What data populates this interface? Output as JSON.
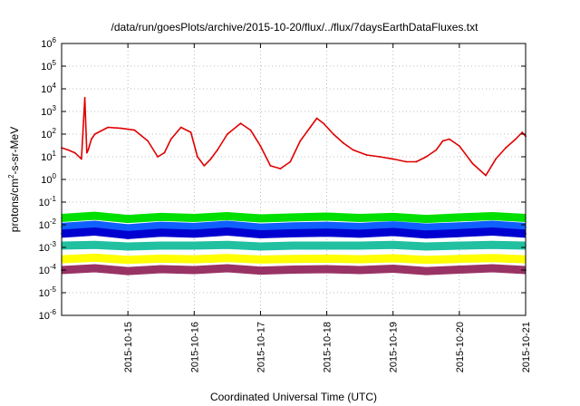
{
  "chart_data": {
    "type": "line",
    "title": "/data/run/goesPlots/archive/2015-10-20/flux/../flux/7daysEarthDataFluxes.txt",
    "xlabel": "Coordinated Universal Time (UTC)",
    "ylabel_main": "protons/cm",
    "ylabel_sup": "2",
    "ylabel_tail": "-s-sr-MeV",
    "x_range": [
      "2015-10-14",
      "2015-10-21"
    ],
    "x_ticks": [
      "2015-10-15",
      "2015-10-16",
      "2015-10-17",
      "2015-10-18",
      "2015-10-19",
      "2015-10-20",
      "2015-10-21"
    ],
    "y_scale": "log",
    "y_ticks": [
      {
        "base": "10",
        "exp": "6",
        "value": 1000000.0
      },
      {
        "base": "10",
        "exp": "5",
        "value": 100000.0
      },
      {
        "base": "10",
        "exp": "4",
        "value": 10000.0
      },
      {
        "base": "10",
        "exp": "3",
        "value": 1000.0
      },
      {
        "base": "10",
        "exp": "2",
        "value": 100.0
      },
      {
        "base": "10",
        "exp": "1",
        "value": 10.0
      },
      {
        "base": "10",
        "exp": "0",
        "value": 1.0
      },
      {
        "base": "10",
        "exp": "-1",
        "value": 0.1
      },
      {
        "base": "10",
        "exp": "-2",
        "value": 0.01
      },
      {
        "base": "10",
        "exp": "-3",
        "value": 0.001
      },
      {
        "base": "10",
        "exp": "-4",
        "value": 0.0001
      },
      {
        "base": "10",
        "exp": "-5",
        "value": 1e-05
      },
      {
        "base": "10",
        "exp": "-6",
        "value": 1e-06
      }
    ],
    "ylim": [
      1e-06,
      1000000.0
    ],
    "grid": true,
    "series": [
      {
        "color": "#e00000",
        "x": [
          0.0,
          0.1,
          0.2,
          0.3,
          0.35,
          0.38,
          0.4,
          0.45,
          0.5,
          0.7,
          0.9,
          1.1,
          1.3,
          1.45,
          1.55,
          1.65,
          1.8,
          1.95,
          2.05,
          2.15,
          2.25,
          2.35,
          2.5,
          2.7,
          2.85,
          3.0,
          3.15,
          3.3,
          3.45,
          3.6,
          3.75,
          3.85,
          3.95,
          4.1,
          4.25,
          4.4,
          4.6,
          4.8,
          5.0,
          5.2,
          5.35,
          5.5,
          5.65,
          5.75,
          5.85,
          6.0,
          6.2,
          6.4,
          6.55,
          6.7,
          6.85,
          6.95,
          7.0
        ],
        "y": [
          25,
          20,
          15,
          8,
          4000,
          15,
          20,
          60,
          100,
          200,
          180,
          150,
          50,
          10,
          15,
          60,
          200,
          120,
          10,
          4,
          8,
          20,
          100,
          300,
          150,
          30,
          4,
          3,
          6,
          50,
          200,
          500,
          300,
          100,
          40,
          20,
          12,
          10,
          8,
          6,
          6,
          10,
          20,
          50,
          60,
          30,
          5,
          1.5,
          8,
          25,
          60,
          120,
          80
        ]
      },
      {
        "color": "#00e000",
        "x": [
          0.0,
          0.5,
          1.0,
          1.5,
          2.0,
          2.5,
          3.0,
          3.5,
          4.0,
          4.5,
          5.0,
          5.5,
          6.0,
          6.5,
          7.0
        ],
        "y": [
          0.02,
          0.025,
          0.018,
          0.022,
          0.02,
          0.024,
          0.019,
          0.021,
          0.023,
          0.02,
          0.022,
          0.018,
          0.021,
          0.024,
          0.02
        ]
      },
      {
        "color": "#1060ff",
        "x": [
          0.0,
          0.5,
          1.0,
          1.5,
          2.0,
          2.5,
          3.0,
          3.5,
          4.0,
          4.5,
          5.0,
          5.5,
          6.0,
          6.5,
          7.0
        ],
        "y": [
          0.008,
          0.01,
          0.007,
          0.009,
          0.008,
          0.01,
          0.0075,
          0.0085,
          0.009,
          0.008,
          0.0095,
          0.0075,
          0.0085,
          0.01,
          0.008
        ]
      },
      {
        "color": "#0000d0",
        "x": [
          0.0,
          0.5,
          1.0,
          1.5,
          2.0,
          2.5,
          3.0,
          3.5,
          4.0,
          4.5,
          5.0,
          5.5,
          6.0,
          6.5,
          7.0
        ],
        "y": [
          0.004,
          0.005,
          0.0035,
          0.0045,
          0.004,
          0.005,
          0.0038,
          0.0042,
          0.0045,
          0.004,
          0.0048,
          0.0037,
          0.0043,
          0.005,
          0.004
        ]
      },
      {
        "color": "#20c0a0",
        "x": [
          0.0,
          0.5,
          1.0,
          1.5,
          2.0,
          2.5,
          3.0,
          3.5,
          4.0,
          4.5,
          5.0,
          5.5,
          6.0,
          6.5,
          7.0
        ],
        "y": [
          0.0012,
          0.0013,
          0.0011,
          0.0012,
          0.0012,
          0.0013,
          0.0011,
          0.0012,
          0.0012,
          0.0012,
          0.0013,
          0.0011,
          0.0012,
          0.0013,
          0.0012
        ]
      },
      {
        "color": "#ffff00",
        "x": [
          0.0,
          0.5,
          1.0,
          1.5,
          2.0,
          2.5,
          3.0,
          3.5,
          4.0,
          4.5,
          5.0,
          5.5,
          6.0,
          6.5,
          7.0
        ],
        "y": [
          0.0003,
          0.00035,
          0.00028,
          0.00032,
          0.0003,
          0.00034,
          0.00029,
          0.00031,
          0.00032,
          0.0003,
          0.00033,
          0.00028,
          0.00031,
          0.00034,
          0.0003
        ]
      },
      {
        "color": "#993366",
        "x": [
          0.0,
          0.5,
          1.0,
          1.5,
          2.0,
          2.5,
          3.0,
          3.5,
          4.0,
          4.5,
          5.0,
          5.5,
          6.0,
          6.5,
          7.0
        ],
        "y": [
          0.0001,
          0.00012,
          9e-05,
          0.00011,
          0.0001,
          0.00012,
          9.5e-05,
          0.000105,
          0.00011,
          0.0001,
          0.000115,
          9e-05,
          0.000105,
          0.00012,
          0.0001
        ]
      }
    ]
  }
}
